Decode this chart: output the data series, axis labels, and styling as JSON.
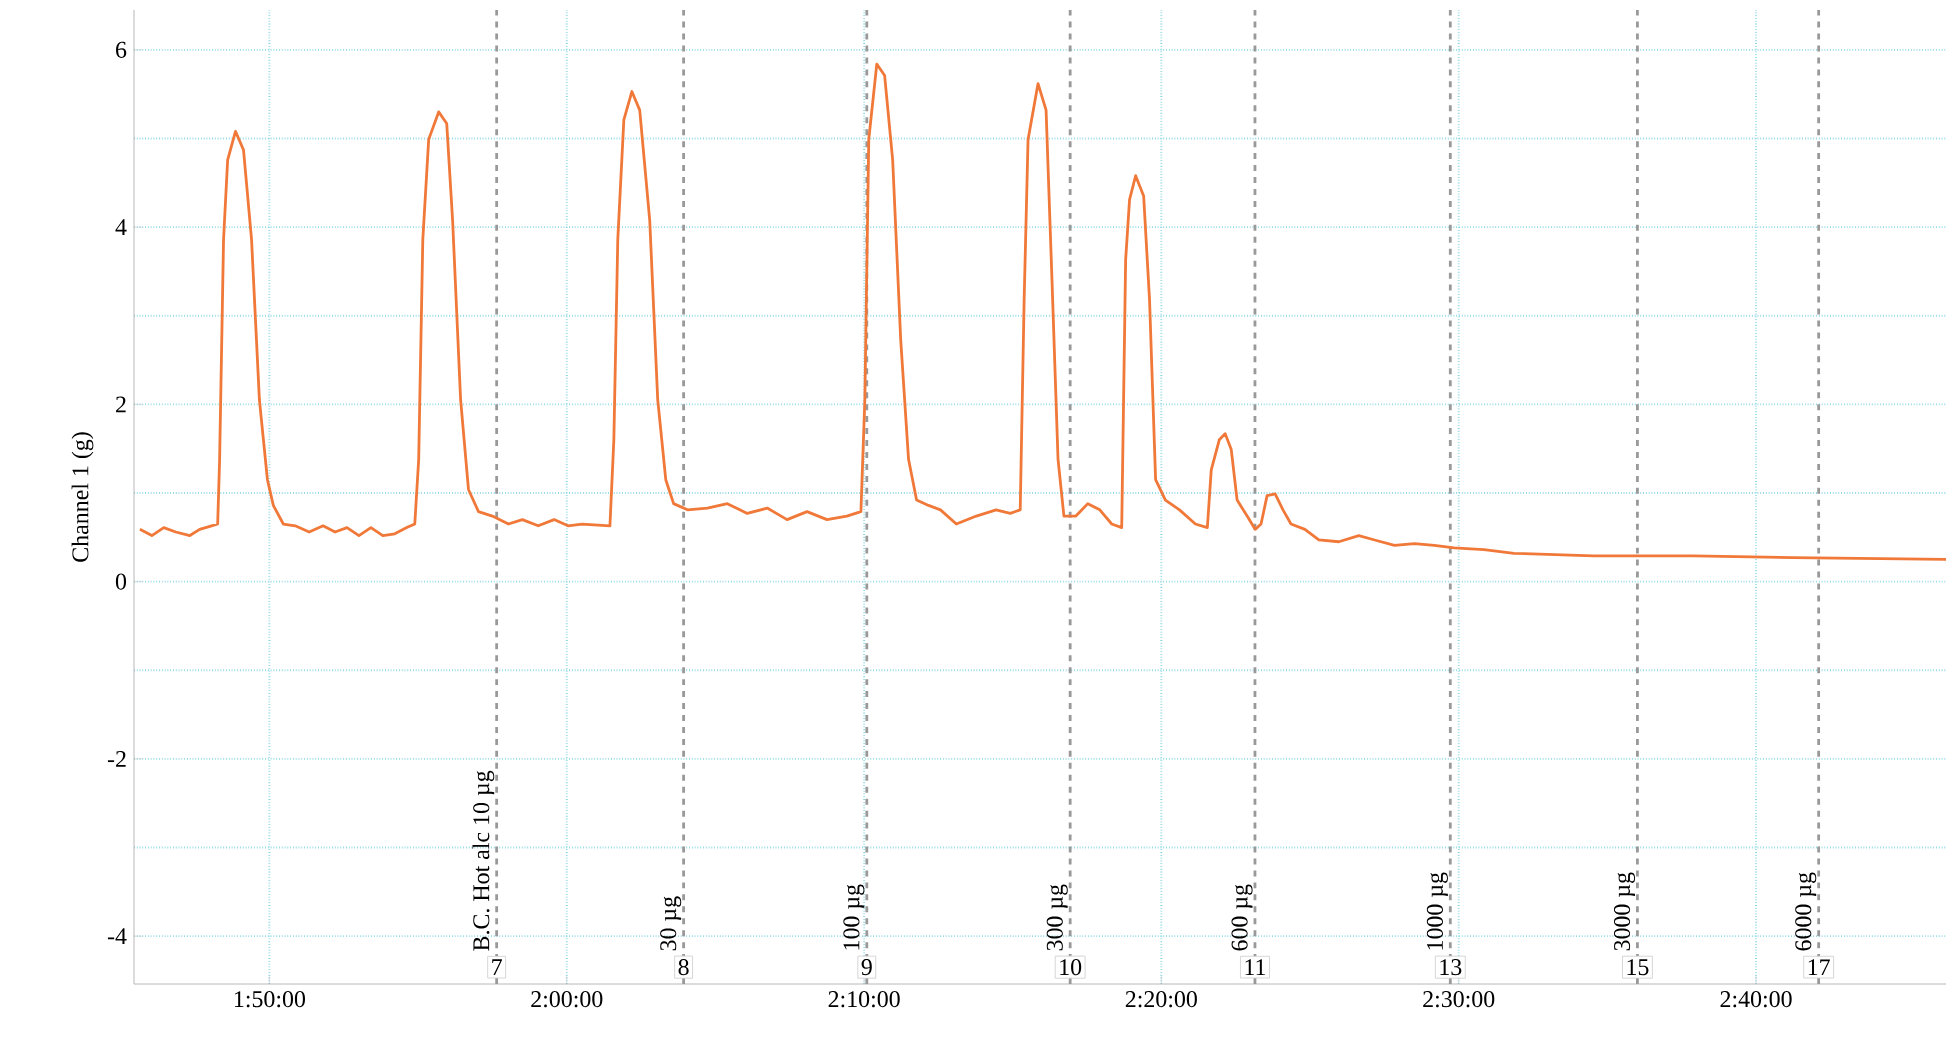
{
  "chart_data": {
    "type": "line",
    "ylabel": "Channel 1 (g)",
    "x": [
      1.7607,
      1.7674,
      1.7741,
      1.7808,
      1.7887,
      1.7942,
      1.8009,
      1.8043,
      1.8054,
      1.8076,
      1.8099,
      1.8143,
      1.8188,
      1.8233,
      1.8277,
      1.8322,
      1.8355,
      1.8411,
      1.8478,
      1.8556,
      1.8634,
      1.8701,
      1.8768,
      1.8835,
      1.8902,
      1.8969,
      1.9036,
      1.9103,
      1.9148,
      1.917,
      1.9193,
      1.9226,
      1.9282,
      1.9327,
      1.936,
      1.9405,
      1.9449,
      1.9505,
      1.9583,
      1.9673,
      1.9751,
      1.984,
      1.9929,
      2.0007,
      2.0086,
      2.0242,
      2.0264,
      2.0286,
      2.032,
      2.0365,
      2.0409,
      2.0465,
      2.051,
      2.0555,
      2.0599,
      2.0677,
      2.0789,
      2.09,
      2.1012,
      2.1124,
      2.1235,
      2.1347,
      2.1459,
      2.157,
      2.1649,
      2.1671,
      2.1693,
      2.1738,
      2.1782,
      2.1827,
      2.1872,
      2.1916,
      2.1961,
      2.2028,
      2.2095,
      2.2184,
      2.2296,
      2.2407,
      2.2486,
      2.2542,
      2.2564,
      2.2586,
      2.2642,
      2.2687,
      2.272,
      2.2754,
      2.2787,
      2.2854,
      2.2921,
      2.2988,
      2.3055,
      2.3111,
      2.3133,
      2.3155,
      2.3189,
      2.3234,
      2.3267,
      2.3301,
      2.3356,
      2.3435,
      2.3524,
      2.3591,
      2.3613,
      2.3658,
      2.3691,
      2.3725,
      2.3758,
      2.3814,
      2.3859,
      2.3892,
      2.3926,
      2.3971,
      2.4015,
      2.406,
      2.4138,
      2.4216,
      2.4328,
      2.444,
      2.4529,
      2.464,
      2.4752,
      2.4863,
      2.4975,
      2.5142,
      2.531,
      2.5756,
      2.6315,
      2.6873,
      2.7732
    ],
    "series": [
      {
        "color": "#f07838",
        "values": [
          0.59,
          0.52,
          0.61,
          0.56,
          0.52,
          0.59,
          0.63,
          0.65,
          1.38,
          3.86,
          4.76,
          5.08,
          4.87,
          3.86,
          2.05,
          1.15,
          0.86,
          0.65,
          0.63,
          0.56,
          0.63,
          0.56,
          0.61,
          0.52,
          0.61,
          0.52,
          0.54,
          0.61,
          0.65,
          1.38,
          3.86,
          4.99,
          5.3,
          5.17,
          4.08,
          2.05,
          1.04,
          0.79,
          0.74,
          0.65,
          0.7,
          0.63,
          0.7,
          0.63,
          0.65,
          0.63,
          1.6,
          3.86,
          5.21,
          5.53,
          5.32,
          4.08,
          2.05,
          1.15,
          0.88,
          0.81,
          0.83,
          0.88,
          0.77,
          0.83,
          0.7,
          0.79,
          0.7,
          0.74,
          0.79,
          2.05,
          4.99,
          5.84,
          5.71,
          4.76,
          2.73,
          1.38,
          0.92,
          0.86,
          0.81,
          0.65,
          0.74,
          0.81,
          0.77,
          0.81,
          3.18,
          4.99,
          5.62,
          5.32,
          3.41,
          1.38,
          0.74,
          0.74,
          0.88,
          0.81,
          0.65,
          0.61,
          3.63,
          4.31,
          4.58,
          4.35,
          3.18,
          1.15,
          0.92,
          0.81,
          0.65,
          0.61,
          1.26,
          1.6,
          1.67,
          1.49,
          0.92,
          0.74,
          0.59,
          0.65,
          0.97,
          0.99,
          0.81,
          0.65,
          0.59,
          0.47,
          0.45,
          0.52,
          0.47,
          0.41,
          0.43,
          0.41,
          0.38,
          0.36,
          0.32,
          0.29,
          0.29,
          0.27,
          0.25
        ]
      }
    ],
    "xlim": [
      1.7574,
      2.7732
    ],
    "ylim": [
      -4.54,
      6.45
    ],
    "xticks": [
      {
        "value": 1.8333,
        "label": "1:50:00"
      },
      {
        "value": 2.0,
        "label": "2:00:00"
      },
      {
        "value": 2.1667,
        "label": "2:10:00"
      },
      {
        "value": 2.3333,
        "label": "2:20:00"
      },
      {
        "value": 2.5,
        "label": "2:30:00"
      },
      {
        "value": 2.6667,
        "label": "2:40:00"
      }
    ],
    "yticks": [
      -4,
      -2,
      0,
      2,
      4,
      6
    ],
    "grid": true,
    "ref_lines": [
      {
        "axis": "x",
        "value": 1.9607,
        "label": "B.C. Hot alc 10 µg",
        "color": "#999999",
        "line_style": "dashed"
      },
      {
        "axis": "x",
        "value": 2.0655,
        "label": "30 µg",
        "color": "#999999",
        "line_style": "dashed"
      },
      {
        "axis": "x",
        "value": 2.1682,
        "label": "100 µg",
        "color": "#999999",
        "line_style": "dashed"
      },
      {
        "axis": "x",
        "value": 2.2822,
        "label": "300 µg",
        "color": "#999999",
        "line_style": "dashed"
      },
      {
        "axis": "x",
        "value": 2.3858,
        "label": "600 µg",
        "color": "#999999",
        "line_style": "dashed"
      },
      {
        "axis": "x",
        "value": 2.4953,
        "label": "1000 µg",
        "color": "#999999",
        "line_style": "dashed"
      },
      {
        "axis": "x",
        "value": 2.6002,
        "label": "3000 µg",
        "color": "#999999",
        "line_style": "dashed"
      },
      {
        "axis": "x",
        "value": 2.7018,
        "label": "6000 µg",
        "color": "#999999",
        "line_style": "dashed"
      }
    ],
    "annotations": [
      {
        "text": "7",
        "x": 1.9607,
        "y": -4.35
      },
      {
        "text": "8",
        "x": 2.0655,
        "y": -4.35
      },
      {
        "text": "9",
        "x": 2.1682,
        "y": -4.35
      },
      {
        "text": "10",
        "x": 2.2822,
        "y": -4.35
      },
      {
        "text": "11",
        "x": 2.3858,
        "y": -4.35
      },
      {
        "text": "13",
        "x": 2.4953,
        "y": -4.35
      },
      {
        "text": "15",
        "x": 2.6002,
        "y": -4.35
      },
      {
        "text": "17",
        "x": 2.7018,
        "y": -4.35
      }
    ]
  }
}
